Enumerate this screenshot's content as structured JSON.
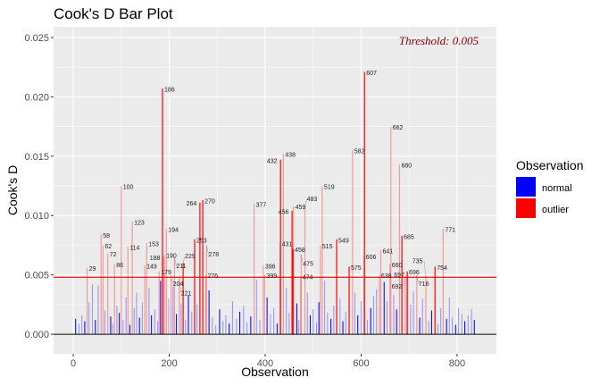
{
  "chart_data": {
    "type": "bar",
    "title": "Cook's D Bar Plot",
    "xlabel": "Observation",
    "ylabel": "Cook's D",
    "xlim": [
      -41,
      882
    ],
    "ylim": [
      -0.00165,
      0.0259
    ],
    "xticks": [
      0,
      200,
      400,
      600,
      800
    ],
    "xtick_labels": [
      "0",
      "200",
      "400",
      "600",
      "800"
    ],
    "yticks": [
      0,
      0.005,
      0.01,
      0.015,
      0.02,
      0.025
    ],
    "ytick_labels": [
      "0.000",
      "0.005",
      "0.010",
      "0.015",
      "0.020",
      "0.025"
    ],
    "grid": true,
    "threshold": 0.0048,
    "threshold_label": "Threshold: 0.005",
    "legend": {
      "title": "Observation",
      "position": "right",
      "entries": [
        {
          "label": "normal",
          "color": "#0000FF"
        },
        {
          "label": "outlier",
          "color": "#FF0000"
        }
      ]
    },
    "colors": {
      "normal": "#0000FF",
      "outlier": "#FF0000",
      "threshold": "#FF0000",
      "threshold_text": "#8B0000",
      "panel": "#EBEBEB"
    },
    "outliers": [
      {
        "obs": 29,
        "value": 0.0056,
        "strong": false
      },
      {
        "obs": 58,
        "value": 0.0084,
        "strong": false
      },
      {
        "obs": 62,
        "value": 0.0075,
        "strong": false
      },
      {
        "obs": 72,
        "value": 0.0068,
        "strong": false
      },
      {
        "obs": 86,
        "value": 0.0059,
        "strong": false
      },
      {
        "obs": 100,
        "value": 0.0125,
        "strong": false
      },
      {
        "obs": 114,
        "value": 0.0074,
        "strong": false
      },
      {
        "obs": 123,
        "value": 0.0095,
        "strong": false
      },
      {
        "obs": 149,
        "value": 0.0058,
        "strong": false
      },
      {
        "obs": 153,
        "value": 0.0077,
        "strong": false
      },
      {
        "obs": 179,
        "value": 0.0053,
        "strong": false
      },
      {
        "obs": 186,
        "value": 0.0207,
        "strong": true
      },
      {
        "obs": 188,
        "value": 0.0065,
        "strong": false
      },
      {
        "obs": 190,
        "value": 0.0067,
        "strong": false
      },
      {
        "obs": 194,
        "value": 0.0089,
        "strong": false
      },
      {
        "obs": 204,
        "value": 0.005,
        "strong": false
      },
      {
        "obs": 211,
        "value": 0.0065,
        "strong": false
      },
      {
        "obs": 221,
        "value": 0.0049,
        "strong": false
      },
      {
        "obs": 229,
        "value": 0.006,
        "strong": true
      },
      {
        "obs": 253,
        "value": 0.008,
        "strong": true
      },
      {
        "obs": 264,
        "value": 0.0111,
        "strong": true
      },
      {
        "obs": 270,
        "value": 0.0113,
        "strong": true
      },
      {
        "obs": 276,
        "value": 0.005,
        "strong": false
      },
      {
        "obs": 278,
        "value": 0.0075,
        "strong": false
      },
      {
        "obs": 377,
        "value": 0.011,
        "strong": false
      },
      {
        "obs": 396,
        "value": 0.0058,
        "strong": false
      },
      {
        "obs": 399,
        "value": 0.005,
        "strong": false
      },
      {
        "obs": 431,
        "value": 0.0077,
        "strong": false
      },
      {
        "obs": 432,
        "value": 0.0147,
        "strong": true
      },
      {
        "obs": 438,
        "value": 0.0152,
        "strong": false
      },
      {
        "obs": 456,
        "value": 0.0104,
        "strong": true
      },
      {
        "obs": 458,
        "value": 0.0072,
        "strong": true
      },
      {
        "obs": 459,
        "value": 0.0108,
        "strong": false
      },
      {
        "obs": 474,
        "value": 0.0049,
        "strong": false
      },
      {
        "obs": 475,
        "value": 0.0067,
        "strong": false
      },
      {
        "obs": 483,
        "value": 0.0108,
        "strong": false
      },
      {
        "obs": 515,
        "value": 0.0075,
        "strong": false
      },
      {
        "obs": 519,
        "value": 0.0125,
        "strong": false
      },
      {
        "obs": 549,
        "value": 0.008,
        "strong": true
      },
      {
        "obs": 575,
        "value": 0.0057,
        "strong": true
      },
      {
        "obs": 582,
        "value": 0.0155,
        "strong": false
      },
      {
        "obs": 606,
        "value": 0.0066,
        "strong": false
      },
      {
        "obs": 607,
        "value": 0.0221,
        "strong": true
      },
      {
        "obs": 638,
        "value": 0.005,
        "strong": false
      },
      {
        "obs": 641,
        "value": 0.0071,
        "strong": false
      },
      {
        "obs": 660,
        "value": 0.0059,
        "strong": false
      },
      {
        "obs": 662,
        "value": 0.0175,
        "strong": false
      },
      {
        "obs": 680,
        "value": 0.0143,
        "strong": false
      },
      {
        "obs": 685,
        "value": 0.0083,
        "strong": true
      },
      {
        "obs": 692,
        "value": 0.0048,
        "strong": false
      },
      {
        "obs": 696,
        "value": 0.0053,
        "strong": true
      },
      {
        "obs": 697,
        "value": 0.0051,
        "strong": false
      },
      {
        "obs": 716,
        "value": 0.005,
        "strong": false
      },
      {
        "obs": 735,
        "value": 0.0049,
        "strong": false
      },
      {
        "obs": 754,
        "value": 0.0057,
        "strong": true
      },
      {
        "obs": 771,
        "value": 0.0089,
        "strong": false
      }
    ],
    "normal": [
      [
        5,
        0.0013
      ],
      [
        12,
        0.0009
      ],
      [
        18,
        0.0016
      ],
      [
        24,
        0.0011
      ],
      [
        33,
        0.0027
      ],
      [
        40,
        0.0042
      ],
      [
        46,
        0.0012
      ],
      [
        52,
        0.0041
      ],
      [
        66,
        0.002
      ],
      [
        78,
        0.0015
      ],
      [
        82,
        0.0009
      ],
      [
        91,
        0.0024
      ],
      [
        96,
        0.0018
      ],
      [
        104,
        0.0012
      ],
      [
        110,
        0.0031
      ],
      [
        118,
        0.0008
      ],
      [
        127,
        0.0022
      ],
      [
        132,
        0.0035
      ],
      [
        138,
        0.0014
      ],
      [
        144,
        0.0027
      ],
      [
        158,
        0.0039
      ],
      [
        163,
        0.0016
      ],
      [
        170,
        0.0021
      ],
      [
        176,
        0.0011
      ],
      [
        182,
        0.0045
      ],
      [
        199,
        0.003
      ],
      [
        208,
        0.004
      ],
      [
        215,
        0.0017
      ],
      [
        225,
        0.0026
      ],
      [
        234,
        0.0012
      ],
      [
        240,
        0.0033
      ],
      [
        247,
        0.0019
      ],
      [
        258,
        0.0025
      ],
      [
        283,
        0.0037
      ],
      [
        290,
        0.0014
      ],
      [
        297,
        0.0008
      ],
      [
        305,
        0.0021
      ],
      [
        312,
        0.0011
      ],
      [
        318,
        0.0016
      ],
      [
        325,
        0.0009
      ],
      [
        332,
        0.0028
      ],
      [
        340,
        0.0013
      ],
      [
        347,
        0.0019
      ],
      [
        355,
        0.0024
      ],
      [
        362,
        0.001
      ],
      [
        370,
        0.0015
      ],
      [
        382,
        0.0046
      ],
      [
        389,
        0.0012
      ],
      [
        404,
        0.0031
      ],
      [
        411,
        0.0017
      ],
      [
        418,
        0.0022
      ],
      [
        425,
        0.0009
      ],
      [
        444,
        0.0039
      ],
      [
        450,
        0.0018
      ],
      [
        466,
        0.0026
      ],
      [
        470,
        0.0012
      ],
      [
        488,
        0.0035
      ],
      [
        494,
        0.0016
      ],
      [
        500,
        0.0021
      ],
      [
        507,
        0.001
      ],
      [
        512,
        0.0027
      ],
      [
        524,
        0.0045
      ],
      [
        530,
        0.0018
      ],
      [
        537,
        0.0013
      ],
      [
        543,
        0.0024
      ],
      [
        556,
        0.003
      ],
      [
        562,
        0.0011
      ],
      [
        568,
        0.0019
      ],
      [
        587,
        0.0035
      ],
      [
        593,
        0.0016
      ],
      [
        600,
        0.0028
      ],
      [
        613,
        0.0012
      ],
      [
        620,
        0.0022
      ],
      [
        626,
        0.0032
      ],
      [
        632,
        0.0038
      ],
      [
        648,
        0.0044
      ],
      [
        654,
        0.0028
      ],
      [
        668,
        0.0033
      ],
      [
        674,
        0.0021
      ],
      [
        703,
        0.0025
      ],
      [
        709,
        0.0036
      ],
      [
        722,
        0.0014
      ],
      [
        728,
        0.003
      ],
      [
        741,
        0.0011
      ],
      [
        747,
        0.002
      ],
      [
        760,
        0.0009
      ],
      [
        766,
        0.0022
      ],
      [
        778,
        0.0013
      ],
      [
        784,
        0.0031
      ],
      [
        790,
        0.0014
      ],
      [
        797,
        0.0008
      ],
      [
        803,
        0.0022
      ],
      [
        810,
        0.0017
      ],
      [
        816,
        0.0011
      ],
      [
        823,
        0.0016
      ],
      [
        830,
        0.0021
      ],
      [
        836,
        0.0012
      ]
    ]
  }
}
